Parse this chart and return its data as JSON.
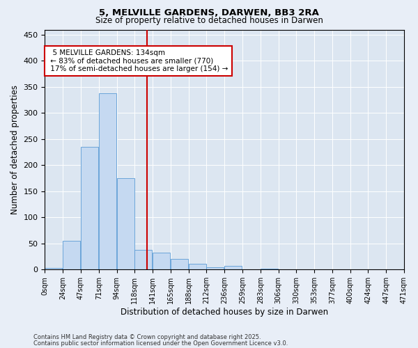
{
  "title1": "5, MELVILLE GARDENS, DARWEN, BB3 2RA",
  "title2": "Size of property relative to detached houses in Darwen",
  "xlabel": "Distribution of detached houses by size in Darwen",
  "ylabel": "Number of detached properties",
  "bin_labels": [
    "0sqm",
    "24sqm",
    "47sqm",
    "71sqm",
    "94sqm",
    "118sqm",
    "141sqm",
    "165sqm",
    "188sqm",
    "212sqm",
    "236sqm",
    "259sqm",
    "283sqm",
    "306sqm",
    "330sqm",
    "353sqm",
    "377sqm",
    "400sqm",
    "424sqm",
    "447sqm",
    "471sqm"
  ],
  "bar_values": [
    3,
    55,
    235,
    338,
    175,
    38,
    33,
    20,
    11,
    5,
    7,
    0,
    2,
    0,
    0,
    0,
    0,
    0,
    0,
    1
  ],
  "bar_color": "#c5d9f1",
  "bar_edge_color": "#5b9bd5",
  "property_line_x": 5,
  "property_size": 134,
  "annotation_title": "5 MELVILLE GARDENS: 134sqm",
  "annotation_line1": "← 83% of detached houses are smaller (770)",
  "annotation_line2": "17% of semi-detached houses are larger (154) →",
  "vline_color": "#cc0000",
  "annotation_box_edge_color": "#cc0000",
  "background_color": "#e8eef7",
  "plot_bg_color": "#dce6f1",
  "grid_color": "#ffffff",
  "ylim": [
    0,
    460
  ],
  "n_bins": 20,
  "footer1": "Contains HM Land Registry data © Crown copyright and database right 2025.",
  "footer2": "Contains public sector information licensed under the Open Government Licence v3.0."
}
